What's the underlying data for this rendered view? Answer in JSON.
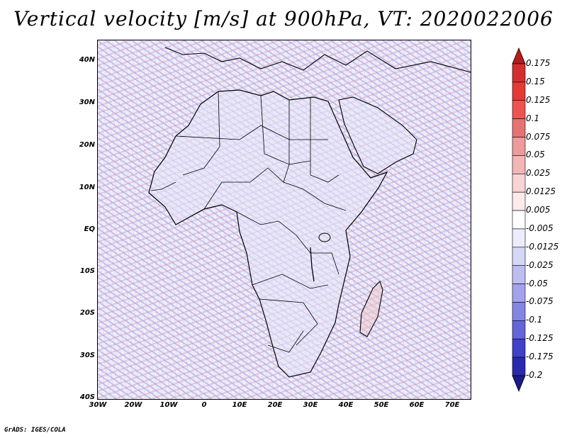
{
  "title": "Vertical velocity [m/s] at 900hPa, VT: 2020022006",
  "credit": "GrADS: IGES/COLA",
  "lat_labels": [
    "40N",
    "30N",
    "20N",
    "10N",
    "EQ",
    "10S",
    "20S",
    "30S",
    "40S"
  ],
  "lon_labels": [
    "30W",
    "20W",
    "10W",
    "0",
    "10E",
    "20E",
    "30E",
    "40E",
    "50E",
    "60E",
    "70E"
  ],
  "colorbar": {
    "labels": [
      "0.175",
      "0.15",
      "0.125",
      "0.1",
      "0.075",
      "0.05",
      "0.025",
      "0.0125",
      "0.005",
      "-0.005",
      "-0.0125",
      "-0.025",
      "-0.05",
      "-0.075",
      "-0.1",
      "-0.125",
      "-0.175",
      "-0.2"
    ],
    "colors": [
      "#b71c1c",
      "#d32f2f",
      "#e53935",
      "#ef5350",
      "#e57373",
      "#ef9a9a",
      "#f4b5b5",
      "#f9d4d4",
      "#fdeaea",
      "#ffffff",
      "#ececfb",
      "#d6d6f7",
      "#bdbdf2",
      "#a3a3ec",
      "#8585e4",
      "#6565d9",
      "#4040c8",
      "#2a2ab0",
      "#1a1a8e"
    ]
  },
  "region": "Africa",
  "domain_lon_range": [
    -30,
    75
  ],
  "domain_lat_range": [
    -40,
    45
  ]
}
